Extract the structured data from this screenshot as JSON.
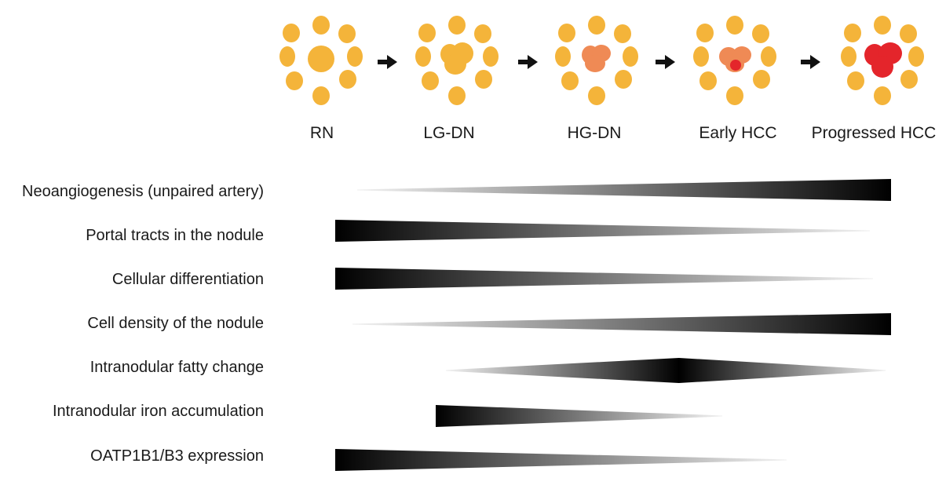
{
  "stages": [
    {
      "label": "RN",
      "core": "rn"
    },
    {
      "label": "LG-DN",
      "core": "lgdn"
    },
    {
      "label": "HG-DN",
      "core": "hgdn"
    },
    {
      "label": "Early HCC",
      "core": "early"
    },
    {
      "label": "Progressed HCC",
      "core": "progressed"
    }
  ],
  "colors": {
    "hepatocyte": "#f4b43a",
    "dysplastic": "#ef8a55",
    "tumor": "#e4252b",
    "bar": "#000000"
  },
  "features": [
    {
      "label": "Neoangiogenesis (unpaired artery)",
      "profile": [
        [
          0.0,
          0.0
        ],
        [
          1.0,
          1.0
        ]
      ]
    },
    {
      "label": "Portal tracts in the nodule",
      "profile": [
        [
          0.0,
          1.0
        ],
        [
          1.0,
          0.0
        ]
      ]
    },
    {
      "label": "Cellular differentiation",
      "profile": [
        [
          0.0,
          1.0
        ],
        [
          1.0,
          0.0
        ]
      ]
    },
    {
      "label": "Cell density of the nodule",
      "profile": [
        [
          0.0,
          0.0
        ],
        [
          1.0,
          1.0
        ]
      ]
    },
    {
      "label": "Intranodular fatty change",
      "profile": [
        [
          0.0,
          0.0
        ],
        [
          0.53,
          1.0
        ],
        [
          1.0,
          0.0
        ]
      ]
    },
    {
      "label": "Intranodular iron accumulation",
      "profile": [
        [
          0.0,
          1.0
        ],
        [
          1.0,
          0.0
        ]
      ]
    },
    {
      "label": "OATP1B1/B3 expression",
      "profile": [
        [
          0.0,
          1.0
        ],
        [
          1.0,
          0.0
        ]
      ]
    }
  ]
}
